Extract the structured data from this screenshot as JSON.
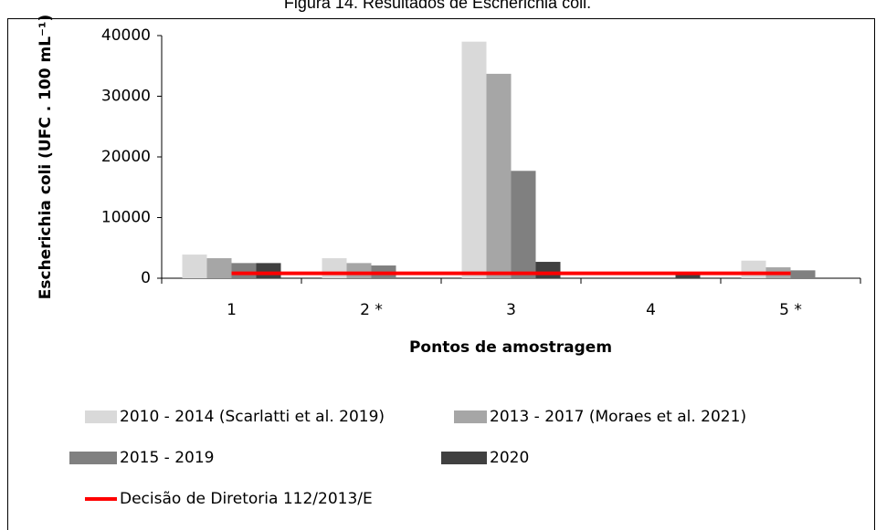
{
  "chart_data": {
    "type": "bar",
    "title": "Figura 14. Resultados de Escherichia coli.",
    "x_label": "Pontos de amostragem",
    "y_label": "Escherichia coli (UFC . 100 mL⁻¹)",
    "categories": [
      "1",
      "2 *",
      "3",
      "4",
      "5 *"
    ],
    "ylim": [
      0,
      40000
    ],
    "yticks": [
      0,
      10000,
      20000,
      30000,
      40000
    ],
    "series": [
      {
        "name": "2010 - 2014 (Scarlatti et al. 2019)",
        "color": "#d9d9d9",
        "values": [
          3900,
          3300,
          39000,
          null,
          2900
        ]
      },
      {
        "name": "2013 - 2017 (Moraes et al. 2021)",
        "color": "#a6a6a6",
        "values": [
          3300,
          2500,
          33700,
          null,
          1800
        ]
      },
      {
        "name": "2015 - 2019",
        "color": "#808080",
        "values": [
          2500,
          2100,
          17700,
          null,
          1300
        ]
      },
      {
        "name": "2020",
        "color": "#404040",
        "values": [
          2500,
          null,
          2700,
          800,
          null
        ]
      },
      {
        "name": "Decisão de Diretoria 112/2013/E",
        "color": "#ff0000",
        "type": "line",
        "values": [
          800,
          800,
          800,
          800,
          800
        ]
      }
    ]
  }
}
